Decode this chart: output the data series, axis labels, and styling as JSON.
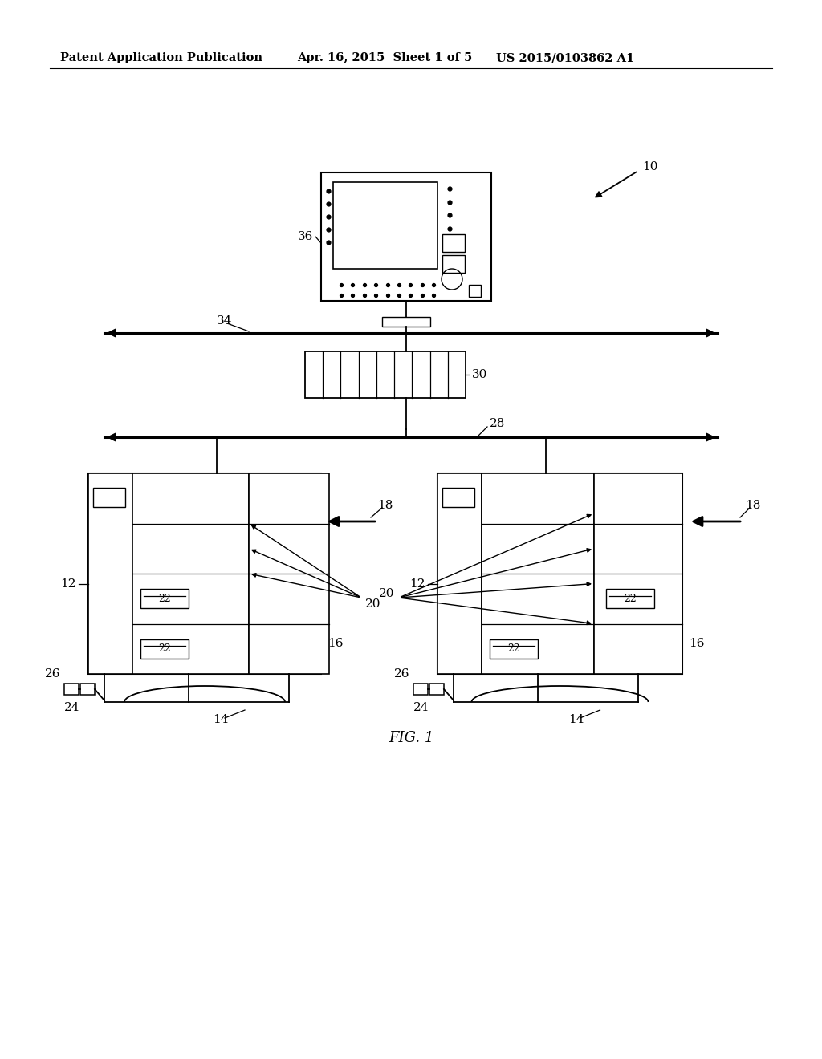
{
  "bg_color": "#ffffff",
  "header_left": "Patent Application Publication",
  "header_mid": "Apr. 16, 2015  Sheet 1 of 5",
  "header_right": "US 2015/0103862 A1",
  "fig_label": "FIG. 1"
}
